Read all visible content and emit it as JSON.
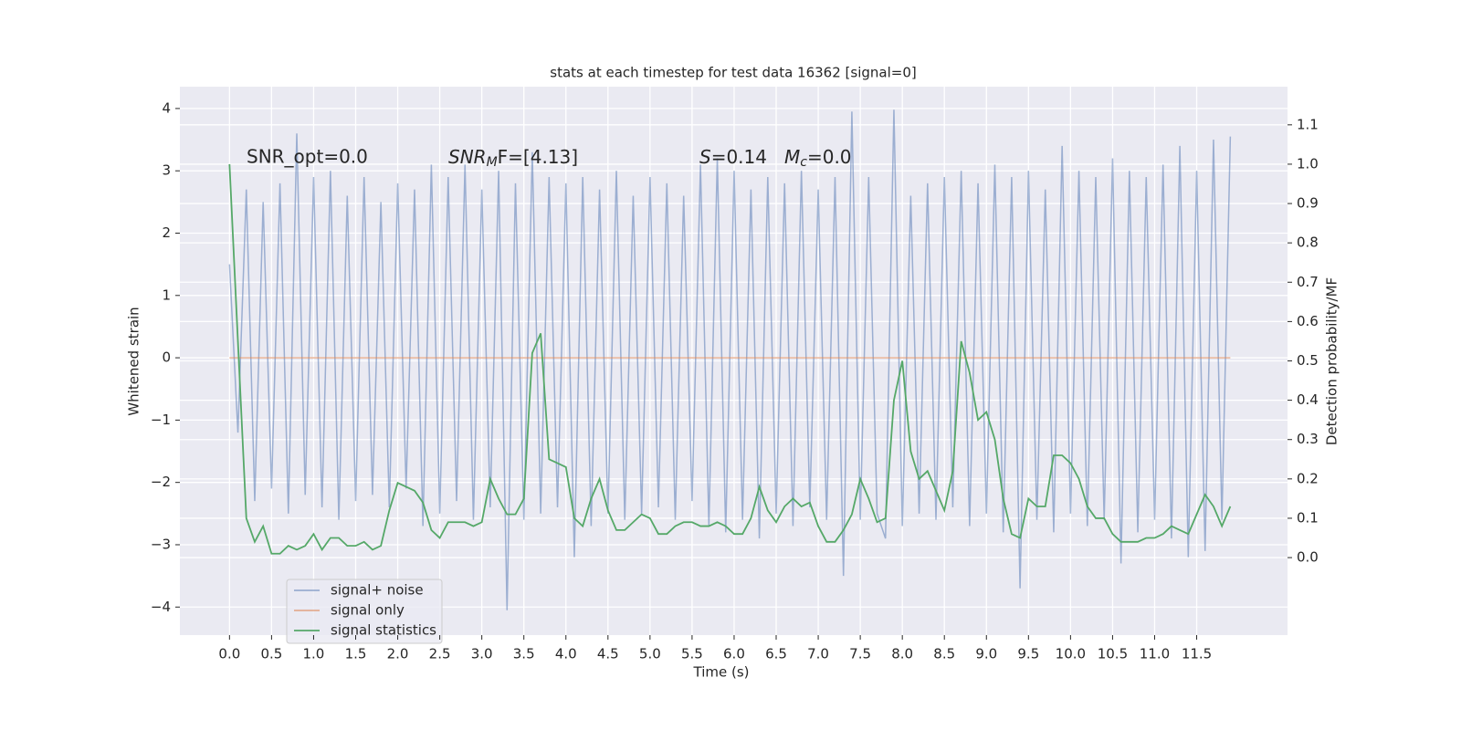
{
  "chart_data": {
    "type": "line",
    "title": "stats at each timestep for test data 16362 [signal=0]",
    "xlabel": "Time (s)",
    "ylabel": "Whitened strain",
    "y2label": "Detection probability/MF",
    "annotations": [
      "SNR_opt=0.0",
      [
        "SNR",
        "M",
        "F=[4.13]"
      ],
      [
        "S",
        "=0.14"
      ],
      [
        "M",
        "c",
        "=0.0"
      ]
    ],
    "grid": true,
    "legend": "lower left",
    "xlim": [
      -0.59,
      12.58
    ],
    "ylim": [
      -4.45,
      4.35
    ],
    "y2lim": [
      -0.197,
      1.197
    ],
    "xticks": [
      {
        "value": 0,
        "label": "0.0"
      },
      0.5,
      {
        "value": 1,
        "label": "1.0"
      },
      1.5,
      {
        "value": 2,
        "label": "2.0"
      },
      2.5,
      {
        "value": 3,
        "label": "3.0"
      },
      3.5,
      {
        "value": 4,
        "label": "4.0"
      },
      4.5,
      {
        "value": 5,
        "label": "5.0"
      },
      5.5,
      {
        "value": 6,
        "label": "6.0"
      },
      6.5,
      {
        "value": 7,
        "label": "7.0"
      },
      7.5,
      {
        "value": 8,
        "label": "8.0"
      },
      8.5,
      {
        "value": 9,
        "label": "9.0"
      },
      9.5,
      {
        "value": 10,
        "label": "10.0"
      },
      10.5,
      {
        "value": 11,
        "label": "11.0"
      },
      11.5
    ],
    "yticks": [
      {
        "value": -4,
        "label": "−4"
      },
      {
        "value": -3,
        "label": "−3"
      },
      {
        "value": -2,
        "label": "−2"
      },
      {
        "value": -1,
        "label": "−1"
      },
      0,
      1,
      2,
      3,
      4
    ],
    "y2ticks": [
      {
        "value": 0,
        "label": "0.0"
      },
      0.1,
      0.2,
      0.3,
      0.4,
      0.5,
      0.6,
      0.7,
      0.8,
      0.9,
      {
        "value": 1,
        "label": "1.0"
      },
      1.1
    ],
    "x": [
      0,
      0.1,
      0.2,
      0.3,
      0.4,
      0.5,
      0.6,
      0.7,
      0.8,
      0.9,
      1,
      1.1,
      1.2,
      1.3,
      1.4,
      1.5,
      1.6,
      1.7,
      1.8,
      1.9,
      2,
      2.1,
      2.2,
      2.3,
      2.4,
      2.5,
      2.6,
      2.7,
      2.8,
      2.9,
      3,
      3.1,
      3.2,
      3.3,
      3.4,
      3.5,
      3.6,
      3.7,
      3.8,
      3.9,
      4,
      4.1,
      4.2,
      4.3,
      4.4,
      4.5,
      4.6,
      4.7,
      4.8,
      4.9,
      5,
      5.1,
      5.2,
      5.3,
      5.4,
      5.5,
      5.6,
      5.7,
      5.8,
      5.9,
      6,
      6.1,
      6.2,
      6.3,
      6.4,
      6.5,
      6.6,
      6.7,
      6.8,
      6.9,
      7,
      7.1,
      7.2,
      7.3,
      7.4,
      7.5,
      7.6,
      7.7,
      7.8,
      7.9,
      8,
      8.1,
      8.2,
      8.3,
      8.4,
      8.5,
      8.6,
      8.7,
      8.8,
      8.9,
      9,
      9.1,
      9.2,
      9.3,
      9.4,
      9.5,
      9.6,
      9.7,
      9.8,
      9.9,
      10,
      10.1,
      10.2,
      10.3,
      10.4,
      10.5,
      10.6,
      10.7,
      10.8,
      10.9,
      11,
      11.1,
      11.2,
      11.3,
      11.4,
      11.5,
      11.6,
      11.7,
      11.8,
      11.9
    ],
    "series": [
      {
        "name": "signal+ noise",
        "color": "#4c72b0",
        "opacity": 0.5,
        "values": [
          1.5,
          -1.2,
          2.7,
          -2.3,
          2.5,
          -2.1,
          2.8,
          -2.5,
          3.6,
          -2.2,
          2.9,
          -2.4,
          3.0,
          -2.6,
          2.6,
          -2.3,
          2.9,
          -2.2,
          2.5,
          -2.4,
          2.8,
          -2.1,
          2.7,
          -2.7,
          3.1,
          -2.5,
          2.9,
          -2.3,
          3.1,
          -2.6,
          2.7,
          -2.4,
          3.0,
          -4.05,
          2.8,
          -2.6,
          3.3,
          -2.5,
          2.9,
          -2.4,
          2.8,
          -3.2,
          2.9,
          -2.7,
          2.7,
          -2.5,
          3.0,
          -2.6,
          2.6,
          -2.5,
          2.9,
          -2.4,
          2.8,
          -2.6,
          2.6,
          -2.3,
          3.1,
          -2.7,
          3.2,
          -2.8,
          3.0,
          -2.6,
          2.7,
          -2.9,
          2.9,
          -2.5,
          2.8,
          -2.7,
          3.0,
          -2.4,
          2.7,
          -2.6,
          2.9,
          -3.5,
          3.95,
          -2.6,
          2.9,
          -2.5,
          -2.9,
          3.98,
          -2.7,
          2.6,
          -2.5,
          2.8,
          -2.6,
          2.9,
          -2.4,
          3.0,
          -2.7,
          2.8,
          -2.5,
          3.1,
          -2.8,
          2.9,
          -3.7,
          3.0,
          -2.6,
          2.7,
          -2.8,
          3.4,
          -2.5,
          3.0,
          -2.7,
          2.9,
          -2.6,
          3.2,
          -3.3,
          3.0,
          -2.8,
          2.9,
          -2.6,
          3.1,
          -2.9,
          3.4,
          -3.2,
          3.0,
          -3.1,
          3.5,
          -2.6,
          3.55
        ]
      },
      {
        "name": "signal only",
        "color": "#dd8452",
        "opacity": 0.6,
        "values": [
          0,
          0,
          0,
          0,
          0,
          0,
          0,
          0,
          0,
          0,
          0,
          0,
          0,
          0,
          0,
          0,
          0,
          0,
          0,
          0,
          0,
          0,
          0,
          0,
          0,
          0,
          0,
          0,
          0,
          0,
          0,
          0,
          0,
          0,
          0,
          0,
          0,
          0,
          0,
          0,
          0,
          0,
          0,
          0,
          0,
          0,
          0,
          0,
          0,
          0,
          0,
          0,
          0,
          0,
          0,
          0,
          0,
          0,
          0,
          0,
          0,
          0,
          0,
          0,
          0,
          0,
          0,
          0,
          0,
          0,
          0,
          0,
          0,
          0,
          0,
          0,
          0,
          0,
          0,
          0,
          0,
          0,
          0,
          0,
          0,
          0,
          0,
          0,
          0,
          0,
          0,
          0,
          0,
          0,
          0,
          0,
          0,
          0,
          0,
          0,
          0,
          0,
          0,
          0,
          0,
          0,
          0,
          0,
          0,
          0,
          0,
          0,
          0,
          0,
          0,
          0,
          0,
          0,
          0,
          0
        ]
      },
      {
        "name": "signal statistics",
        "color": "#55a868",
        "opacity": 1,
        "axis": "y2",
        "values": [
          1.0,
          0.55,
          0.1,
          0.04,
          0.08,
          0.01,
          0.01,
          0.03,
          0.02,
          0.03,
          0.06,
          0.02,
          0.05,
          0.05,
          0.03,
          0.03,
          0.04,
          0.02,
          0.03,
          0.12,
          0.19,
          0.18,
          0.17,
          0.14,
          0.07,
          0.05,
          0.09,
          0.09,
          0.09,
          0.08,
          0.09,
          0.2,
          0.15,
          0.11,
          0.11,
          0.15,
          0.52,
          0.57,
          0.25,
          0.24,
          0.23,
          0.1,
          0.08,
          0.15,
          0.2,
          0.12,
          0.07,
          0.07,
          0.09,
          0.11,
          0.1,
          0.06,
          0.06,
          0.08,
          0.09,
          0.09,
          0.08,
          0.08,
          0.09,
          0.08,
          0.06,
          0.06,
          0.1,
          0.18,
          0.12,
          0.09,
          0.13,
          0.15,
          0.13,
          0.14,
          0.08,
          0.04,
          0.04,
          0.07,
          0.11,
          0.2,
          0.15,
          0.09,
          0.1,
          0.4,
          0.5,
          0.27,
          0.2,
          0.22,
          0.17,
          0.12,
          0.22,
          0.55,
          0.47,
          0.35,
          0.37,
          0.3,
          0.15,
          0.06,
          0.05,
          0.15,
          0.13,
          0.13,
          0.26,
          0.26,
          0.24,
          0.2,
          0.13,
          0.1,
          0.1,
          0.06,
          0.04,
          0.04,
          0.04,
          0.05,
          0.05,
          0.06,
          0.08,
          0.07,
          0.06,
          0.11,
          0.16,
          0.13,
          0.08,
          0.13
        ]
      }
    ]
  }
}
